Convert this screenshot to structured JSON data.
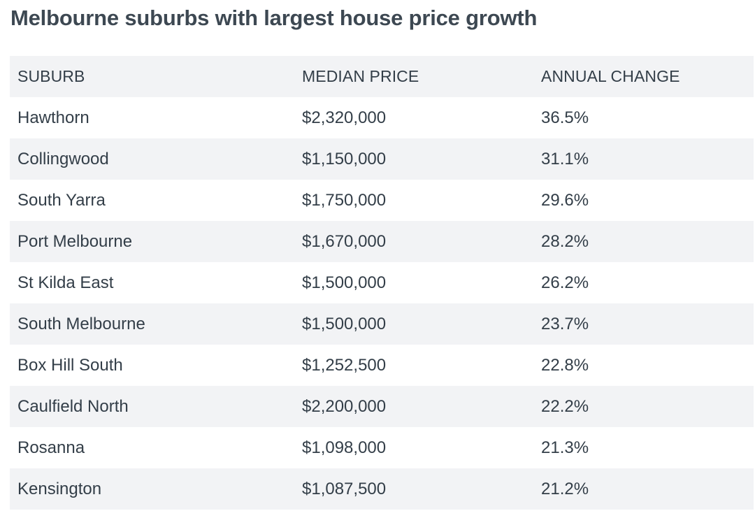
{
  "title": "Melbourne suburbs with largest house price growth",
  "table": {
    "headers": [
      "SUBURB",
      "MEDIAN PRICE",
      "ANNUAL CHANGE"
    ],
    "rows": [
      [
        "Hawthorn",
        "$2,320,000",
        "36.5%"
      ],
      [
        "Collingwood",
        "$1,150,000",
        "31.1%"
      ],
      [
        "South Yarra",
        "$1,750,000",
        "29.6%"
      ],
      [
        "Port Melbourne",
        "$1,670,000",
        "28.2%"
      ],
      [
        "St Kilda East",
        "$1,500,000",
        "26.2%"
      ],
      [
        "South Melbourne",
        "$1,500,000",
        "23.7%"
      ],
      [
        "Box Hill South",
        "$1,252,500",
        "22.8%"
      ],
      [
        "Caulfield North",
        "$2,200,000",
        "22.2%"
      ],
      [
        "Rosanna",
        "$1,098,000",
        "21.3%"
      ],
      [
        "Kensington",
        "$1,087,500",
        "21.2%"
      ]
    ]
  },
  "colors": {
    "text": "#333e48",
    "row_shade": "#f2f3f5",
    "background": "#ffffff"
  }
}
